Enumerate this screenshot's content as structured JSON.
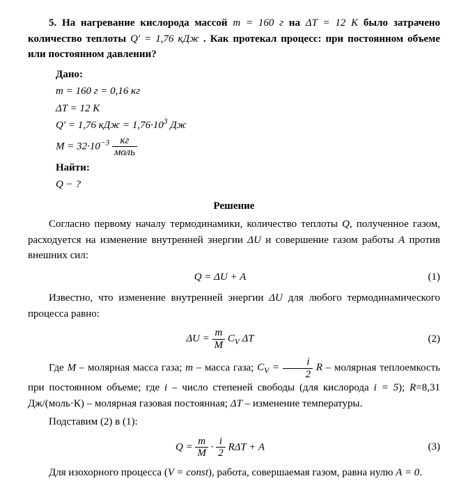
{
  "problem": {
    "number": "5.",
    "text_parts": {
      "p1": "На нагревание кислорода массой",
      "m_eq": "m = 160 г",
      "p2": "на",
      "dT_eq": "ΔT = 12 К",
      "p3": "было затрачено количество теплоты",
      "Q_eq": "Q′ = 1,76 кДж",
      "p4": ". Как протекал процесс: при постоянном объеме или постоянном давлении?"
    }
  },
  "given": {
    "label": "Дано:",
    "lines": {
      "l1": "m = 160 г = 0,16 кг",
      "l2": "ΔT = 12 К",
      "l3_a": "Q′ = 1,76 кДж = 1,76·10",
      "l3_exp": "3",
      "l3_b": " Дж",
      "l4_a": "M = 32·10",
      "l4_exp": "−3",
      "l4_frac_num": "кг",
      "l4_frac_den": "моль"
    },
    "find_label": "Найти:",
    "find": "Q − ?"
  },
  "solution": {
    "title": "Решение",
    "para1_a": "Согласно первому началу термодинамики, количество теплоты ",
    "para1_Q": "Q",
    "para1_b": ", полученное газом, расходуется на изменение внутренней энергии ",
    "para1_dU": "ΔU",
    "para1_c": " и совершение газом работы ",
    "para1_A": "A",
    "para1_d": " против внешних сил:",
    "eq1": "Q = ΔU + A",
    "eq1_num": "(1)",
    "para2_a": "Известно, что изменение внутренней энергии ",
    "para2_dU": "ΔU",
    "para2_b": " для любого термодинамического процесса равно:",
    "eq2_lhs": "ΔU = ",
    "eq2_frac_num": "m",
    "eq2_frac_den": "M",
    "eq2_rhs": " C",
    "eq2_sub": "V",
    "eq2_tail": " ΔT",
    "eq2_num": "(2)",
    "para3_a": "Где ",
    "para3_M": "M",
    "para3_b": " – молярная масса газа; ",
    "para3_m": "m",
    "para3_c": " – масса газа; ",
    "para3_Cv_a": "C",
    "para3_Cv_sub": "V",
    "para3_Cv_eq": " = ",
    "para3_Cv_frac_num": "i",
    "para3_Cv_frac_den": "2",
    "para3_Cv_R": " R",
    "para3_d": " – молярная теплоемкость при постоянном объеме; где ",
    "para3_i": "i",
    "para3_e": " – число степеней свободы (для кислорода ",
    "para3_i5": "i = 5",
    "para3_f": "); ",
    "para3_R": "R",
    "para3_g": "=8,31 Дж/(моль·К) – молярная газовая постоянная; ",
    "para3_dT": "ΔT",
    "para3_h": " – изменение температуры.",
    "para4": "Подставим (2) в (1):",
    "eq3_lhs": "Q = ",
    "eq3_frac1_num": "m",
    "eq3_frac1_den": "M",
    "eq3_mid": " · ",
    "eq3_frac2_num": "i",
    "eq3_frac2_den": "2",
    "eq3_rhs": " RΔT + A",
    "eq3_num": "(3)",
    "para5_a": "Для изохорного процесса (",
    "para5_V": "V = const",
    "para5_b": "), работа, совершаемая газом, равна нулю ",
    "para5_A0": "A = 0",
    "para5_c": "."
  }
}
